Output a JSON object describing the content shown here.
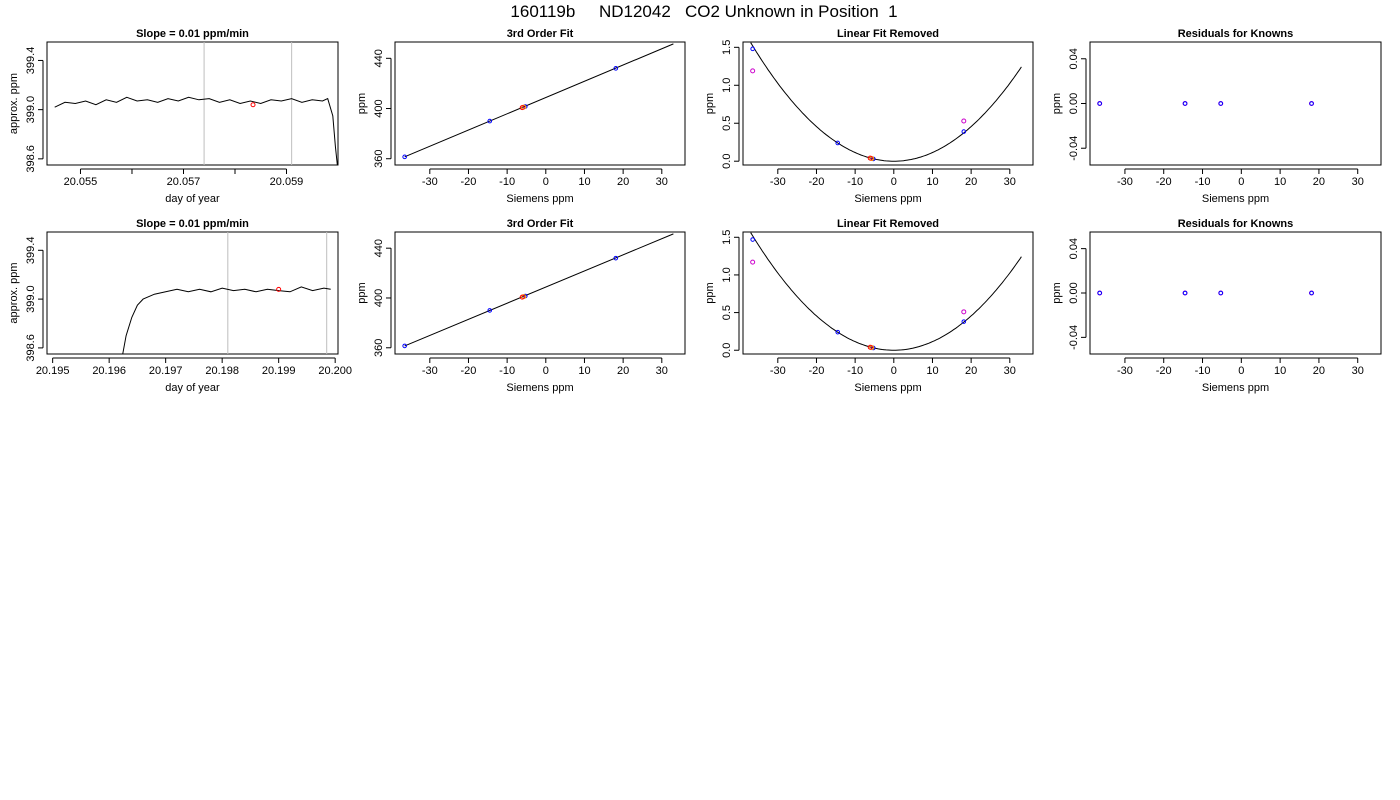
{
  "main_title": "160119b     ND12042   CO2 Unknown in Position  1",
  "colors": {
    "line": "#000000",
    "known": "#0000ff",
    "unknown": "#ff0000",
    "residual": "#cc00cc",
    "orange": "#ff9900",
    "vline": "#bebebe"
  },
  "chart_data": [
    {
      "type": "line",
      "title": "Slope =  0.01  ppm/min",
      "xlabel": "day of year",
      "ylabel": "approx. ppm",
      "xlim": [
        20.05435,
        20.06
      ],
      "ylim": [
        398.55,
        399.55
      ],
      "xticks": [
        20.055,
        20.056,
        20.057,
        20.058,
        20.059
      ],
      "xtick_labels": [
        "20.055",
        "",
        "20.057",
        "",
        "20.059"
      ],
      "yticks": [
        398.6,
        399.0,
        399.4
      ],
      "ytick_labels": [
        "398.6",
        "399.0",
        "399.4"
      ],
      "vlines": [
        20.0574,
        20.0591
      ],
      "highlight": {
        "x": 20.05835,
        "y": 399.04
      },
      "line_points": [
        [
          20.0545,
          399.02
        ],
        [
          20.0547,
          399.06
        ],
        [
          20.0549,
          399.05
        ],
        [
          20.0551,
          399.07
        ],
        [
          20.0553,
          399.04
        ],
        [
          20.0555,
          399.08
        ],
        [
          20.0557,
          399.06
        ],
        [
          20.0559,
          399.1
        ],
        [
          20.0561,
          399.07
        ],
        [
          20.0563,
          399.08
        ],
        [
          20.0565,
          399.06
        ],
        [
          20.0567,
          399.09
        ],
        [
          20.0569,
          399.07
        ],
        [
          20.0571,
          399.1
        ],
        [
          20.0573,
          399.08
        ],
        [
          20.0575,
          399.09
        ],
        [
          20.0577,
          399.06
        ],
        [
          20.0579,
          399.08
        ],
        [
          20.0581,
          399.05
        ],
        [
          20.0583,
          399.07
        ],
        [
          20.0585,
          399.05
        ],
        [
          20.0587,
          399.08
        ],
        [
          20.0589,
          399.07
        ],
        [
          20.0591,
          399.09
        ],
        [
          20.0593,
          399.06
        ],
        [
          20.0595,
          399.08
        ],
        [
          20.0597,
          399.07
        ],
        [
          20.0598,
          399.09
        ],
        [
          20.0599,
          398.95
        ],
        [
          20.05995,
          398.7
        ],
        [
          20.06,
          398.5
        ]
      ]
    },
    {
      "type": "scatter",
      "title": "3rd Order Fit",
      "xlabel": "Siemens ppm",
      "ylabel": "ppm",
      "xlim": [
        -39,
        36
      ],
      "ylim": [
        355,
        453
      ],
      "xticks": [
        -30,
        -20,
        -10,
        0,
        10,
        20,
        30
      ],
      "yticks": [
        360,
        400,
        440
      ],
      "fit_line": [
        [
          -36.5,
          361.5
        ],
        [
          33,
          451.5
        ]
      ],
      "known_points": [
        [
          -36.5,
          361.5
        ],
        [
          -14.5,
          390
        ],
        [
          -5.3,
          401.6
        ],
        [
          18.1,
          432
        ]
      ],
      "unknown_points": [
        [
          -6.1,
          400.7
        ]
      ],
      "extra_points": [
        [
          -5.7,
          401.1
        ]
      ]
    },
    {
      "type": "scatter",
      "title": "Linear Fit Removed",
      "xlabel": "Siemens ppm",
      "ylabel": "ppm",
      "xlim": [
        -39,
        36
      ],
      "ylim": [
        -0.05,
        1.57
      ],
      "xticks": [
        -30,
        -20,
        -10,
        0,
        10,
        20,
        30
      ],
      "yticks": [
        0.0,
        0.5,
        1.0,
        1.5
      ],
      "ytick_labels": [
        "0.0",
        "0.5",
        "1.0",
        "1.5"
      ],
      "curve_coef": 0.00114,
      "curve_xlim": [
        -37,
        33
      ],
      "known_points": [
        [
          -36.5,
          1.48
        ],
        [
          -14.5,
          0.24
        ],
        [
          -5.3,
          0.03
        ],
        [
          18.1,
          0.39
        ]
      ],
      "residual_points": [
        [
          -36.5,
          1.19
        ],
        [
          18.1,
          0.53
        ]
      ],
      "unknown_points": [
        [
          -6.1,
          0.04
        ]
      ],
      "extra_points": [
        [
          -5.7,
          0.035
        ]
      ]
    },
    {
      "type": "scatter",
      "title": "Residuals for Knowns",
      "xlabel": "Siemens ppm",
      "ylabel": "ppm",
      "xlim": [
        -39,
        36
      ],
      "ylim": [
        -0.055,
        0.055
      ],
      "xticks": [
        -30,
        -20,
        -10,
        0,
        10,
        20,
        30
      ],
      "yticks": [
        -0.04,
        0.0,
        0.04
      ],
      "ytick_labels": [
        "-0.04",
        "0.00",
        "0.04"
      ],
      "known_points": [
        [
          -36.5,
          0
        ],
        [
          -14.5,
          0
        ],
        [
          -5.3,
          0
        ],
        [
          18.1,
          0
        ]
      ],
      "residual_points": [
        [
          -36.5,
          0
        ],
        [
          -14.5,
          0
        ],
        [
          -5.3,
          0
        ],
        [
          18.1,
          0
        ]
      ]
    },
    {
      "type": "line",
      "title": "Slope =  0.01  ppm/min",
      "xlabel": "day of year",
      "ylabel": "approx. ppm",
      "xlim": [
        20.1949,
        20.20005
      ],
      "ylim": [
        398.55,
        399.55
      ],
      "xticks": [
        20.195,
        20.196,
        20.197,
        20.198,
        20.199,
        20.2
      ],
      "xtick_labels": [
        "20.195",
        "20.196",
        "20.197",
        "20.198",
        "20.199",
        "20.200"
      ],
      "yticks": [
        398.6,
        399.0,
        399.4
      ],
      "ytick_labels": [
        "398.6",
        "399.0",
        "399.4"
      ],
      "vlines": [
        20.1981,
        20.19985
      ],
      "highlight": {
        "x": 20.199,
        "y": 399.08
      },
      "line_points": [
        [
          20.19622,
          398.5
        ],
        [
          20.1963,
          398.7
        ],
        [
          20.1964,
          398.85
        ],
        [
          20.1965,
          398.95
        ],
        [
          20.1966,
          399.0
        ],
        [
          20.1968,
          399.04
        ],
        [
          20.197,
          399.06
        ],
        [
          20.1972,
          399.08
        ],
        [
          20.1974,
          399.06
        ],
        [
          20.1976,
          399.08
        ],
        [
          20.1978,
          399.06
        ],
        [
          20.198,
          399.09
        ],
        [
          20.1982,
          399.07
        ],
        [
          20.1984,
          399.08
        ],
        [
          20.1986,
          399.06
        ],
        [
          20.1988,
          399.08
        ],
        [
          20.199,
          399.07
        ],
        [
          20.1992,
          399.06
        ],
        [
          20.1994,
          399.1
        ],
        [
          20.1996,
          399.07
        ],
        [
          20.1998,
          399.09
        ],
        [
          20.19992,
          399.08
        ]
      ]
    },
    {
      "type": "scatter",
      "title": "3rd Order Fit",
      "xlabel": "Siemens ppm",
      "ylabel": "ppm",
      "xlim": [
        -39,
        36
      ],
      "ylim": [
        355,
        453
      ],
      "xticks": [
        -30,
        -20,
        -10,
        0,
        10,
        20,
        30
      ],
      "yticks": [
        360,
        400,
        440
      ],
      "fit_line": [
        [
          -36.5,
          361.5
        ],
        [
          33,
          451.5
        ]
      ],
      "known_points": [
        [
          -36.5,
          361.5
        ],
        [
          -14.5,
          390
        ],
        [
          -5.3,
          401.6
        ],
        [
          18.1,
          432
        ]
      ],
      "unknown_points": [
        [
          -6.1,
          400.7
        ]
      ],
      "extra_points": [
        [
          -5.7,
          401.1
        ]
      ]
    },
    {
      "type": "scatter",
      "title": "Linear Fit Removed",
      "xlabel": "Siemens ppm",
      "ylabel": "ppm",
      "xlim": [
        -39,
        36
      ],
      "ylim": [
        -0.05,
        1.57
      ],
      "xticks": [
        -30,
        -20,
        -10,
        0,
        10,
        20,
        30
      ],
      "yticks": [
        0.0,
        0.5,
        1.0,
        1.5
      ],
      "ytick_labels": [
        "0.0",
        "0.5",
        "1.0",
        "1.5"
      ],
      "curve_coef": 0.00114,
      "curve_xlim": [
        -37,
        33
      ],
      "known_points": [
        [
          -36.5,
          1.47
        ],
        [
          -14.5,
          0.24
        ],
        [
          -5.3,
          0.03
        ],
        [
          18.1,
          0.38
        ]
      ],
      "residual_points": [
        [
          -36.5,
          1.17
        ],
        [
          18.1,
          0.51
        ]
      ],
      "unknown_points": [
        [
          -6.1,
          0.04
        ]
      ],
      "extra_points": [
        [
          -5.7,
          0.035
        ]
      ]
    },
    {
      "type": "scatter",
      "title": "Residuals for Knowns",
      "xlabel": "Siemens ppm",
      "ylabel": "ppm",
      "xlim": [
        -39,
        36
      ],
      "ylim": [
        -0.055,
        0.055
      ],
      "xticks": [
        -30,
        -20,
        -10,
        0,
        10,
        20,
        30
      ],
      "yticks": [
        -0.04,
        0.0,
        0.04
      ],
      "ytick_labels": [
        "-0.04",
        "0.00",
        "0.04"
      ],
      "known_points": [
        [
          -36.5,
          0
        ],
        [
          -14.5,
          0
        ],
        [
          -5.3,
          0
        ],
        [
          18.1,
          0
        ]
      ],
      "residual_points": [
        [
          -36.5,
          0
        ],
        [
          -14.5,
          0
        ],
        [
          -5.3,
          0
        ],
        [
          18.1,
          0
        ]
      ]
    }
  ]
}
